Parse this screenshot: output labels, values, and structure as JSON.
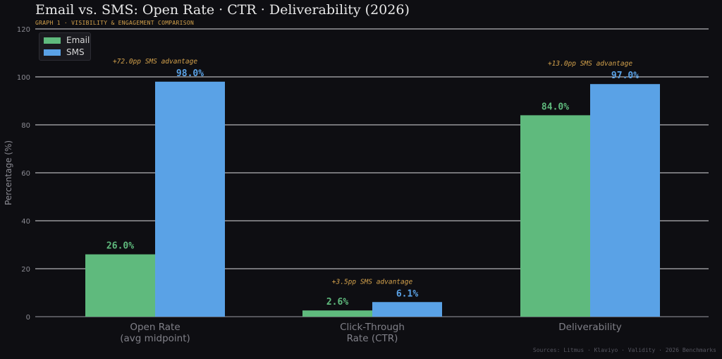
{
  "header": {
    "title": "Email vs. SMS: Open Rate · CTR · Deliverability (2026)",
    "subtitle": "GRAPH 1  ·  VISIBILITY & ENGAGEMENT COMPARISON",
    "source": "Sources: Litmus · Klaviyo · Validity · 2026 Benchmarks"
  },
  "colors": {
    "email": "#5fba7d",
    "sms": "#5aa2e6",
    "annotation": "#d4a24c",
    "grid": "#d9d9de",
    "axis_text": "#8a8a92",
    "category_text": "#808088"
  },
  "chart_data": {
    "type": "bar",
    "title": "Email vs. SMS: Open Rate · CTR · Deliverability (2026)",
    "ylabel": "Percentage (%)",
    "ylim": [
      0,
      120
    ],
    "yticks": [
      0,
      20,
      40,
      60,
      80,
      100,
      120
    ],
    "grid": true,
    "legend_position": "top-left",
    "categories": [
      [
        "Open Rate",
        "(avg midpoint)"
      ],
      [
        "Click-Through",
        "Rate (CTR)"
      ],
      [
        "Deliverability"
      ]
    ],
    "series": [
      {
        "name": "Email",
        "values": [
          26.0,
          2.6,
          84.0
        ],
        "labels": [
          "26.0%",
          "2.6%",
          "84.0%"
        ]
      },
      {
        "name": "SMS",
        "values": [
          98.0,
          6.1,
          97.0
        ],
        "labels": [
          "98.0%",
          "6.1%",
          "97.0%"
        ]
      }
    ],
    "annotations": [
      "+72.0pp SMS advantage",
      "+3.5pp SMS advantage",
      "+13.0pp SMS advantage"
    ]
  }
}
